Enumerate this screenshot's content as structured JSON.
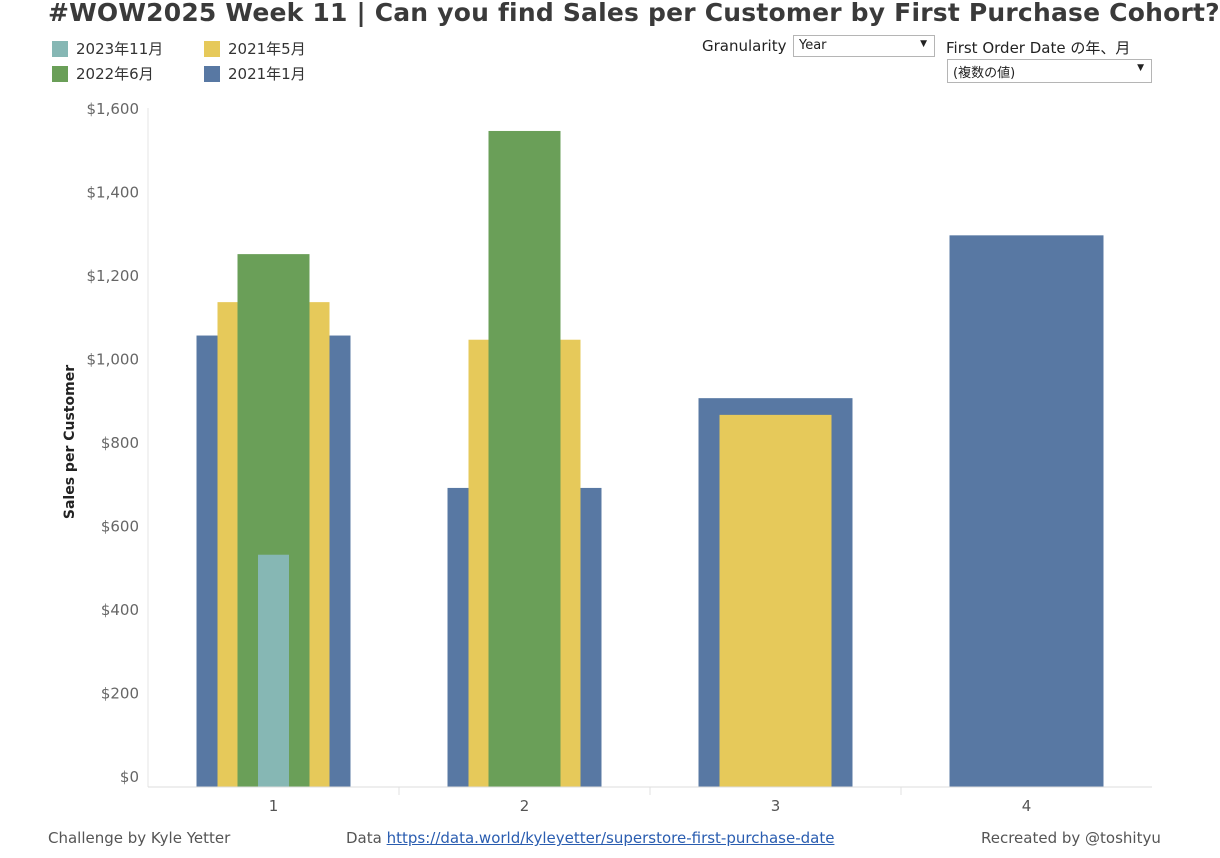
{
  "title": "#WOW2025 Week 11 | Can you find Sales per Customer by First Purchase Cohort?",
  "legend": [
    {
      "label": "2023年11月",
      "color": "#86b7b4"
    },
    {
      "label": "2021年5月",
      "color": "#e6c95a"
    },
    {
      "label": "2022年6月",
      "color": "#6a9f58"
    },
    {
      "label": "2021年1月",
      "color": "#5878a3"
    }
  ],
  "controls": {
    "granularity_label": "Granularity",
    "granularity_value": "Year",
    "first_order_label": "First Order Date の年、月",
    "first_order_value": "(複数の値)"
  },
  "chart_data": {
    "type": "bar",
    "categories": [
      "1",
      "2",
      "3",
      "4"
    ],
    "series": [
      {
        "name": "2021年1月",
        "color": "#5878a3",
        "values": [
          1055,
          690,
          905,
          1295
        ]
      },
      {
        "name": "2021年5月",
        "color": "#e6c95a",
        "values": [
          1135,
          1045,
          865,
          null
        ]
      },
      {
        "name": "2022年6月",
        "color": "#6a9f58",
        "values": [
          1250,
          1545,
          null,
          null
        ]
      },
      {
        "name": "2023年11月",
        "color": "#86b7b4",
        "values": [
          530,
          null,
          null,
          null
        ]
      }
    ],
    "ylabel": "Sales per Customer",
    "xlabel": "",
    "ylim": [
      0,
      1600
    ],
    "yticks": [
      0,
      200,
      400,
      600,
      800,
      1000,
      1200,
      1400,
      1600
    ],
    "ytick_labels": [
      "$0",
      "$200",
      "$400",
      "$600",
      "$800",
      "$1,000",
      "$1,200",
      "$1,400",
      "$1,600"
    ]
  },
  "footer": {
    "challenge": "Challenge by Kyle Yetter",
    "data_prefix": "Data",
    "data_link": "https://data.world/kyleyetter/superstore-first-purchase-date",
    "recreated": "Recreated by @toshityu"
  }
}
